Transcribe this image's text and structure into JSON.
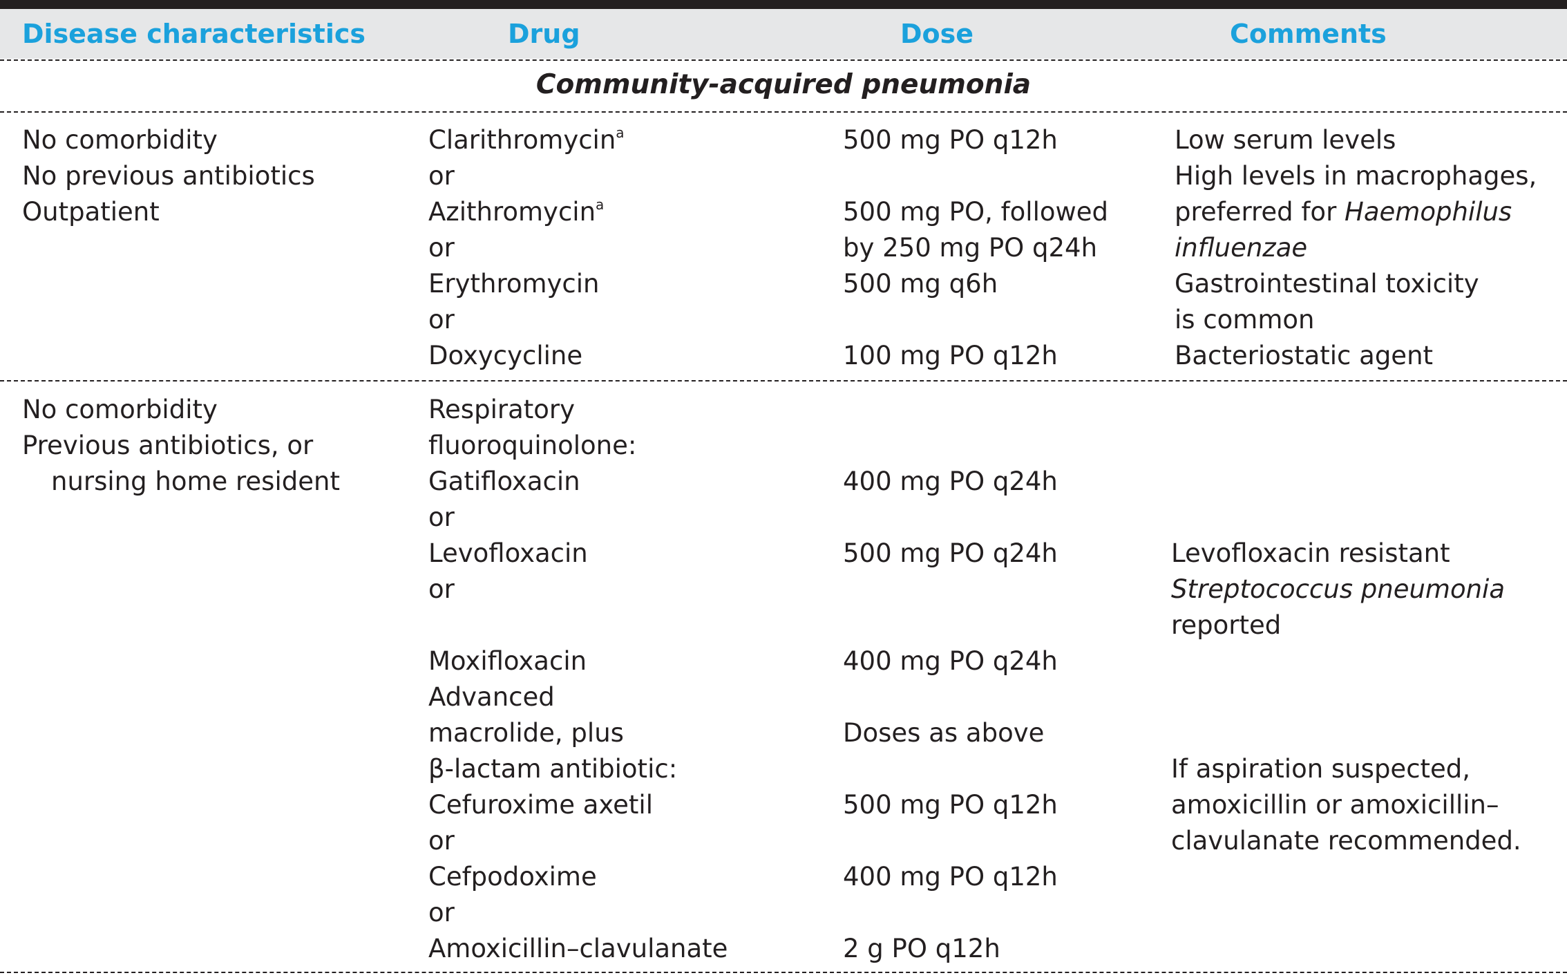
{
  "header": {
    "col_disease": "Disease characteristics",
    "col_drug": "Drug",
    "col_dose": "Dose",
    "col_comments": "Comments"
  },
  "section_title": "Community-acquired pneumonia",
  "row1": {
    "disease": [
      "No comorbidity",
      "No previous antibiotics",
      "Outpatient"
    ],
    "drug": {
      "clarithromycin": "Clarithromycin",
      "sup_a": "a",
      "or1": "or",
      "azithromycin": "Azithromycin",
      "sup_b": "a",
      "or2": "or",
      "erythromycin": "Erythromycin",
      "or3": "or",
      "doxycycline": "Doxycycline"
    },
    "dose": {
      "clarithromycin": "500 mg PO q12h",
      "azithromycin_1": "500 mg PO, followed",
      "azithromycin_2": "by 250 mg PO q24h",
      "erythromycin": "500 mg q6h",
      "doxycycline": "100 mg PO q12h"
    },
    "comments": {
      "l1": "Low serum levels",
      "l2": "High levels in macrophages,",
      "l3_a": "preferred for ",
      "l3_b": "Haemophilus",
      "l4": "influenzae",
      "l5": "Gastrointestinal toxicity",
      "l6": "is common",
      "l7": "Bacteriostatic agent"
    }
  },
  "row2": {
    "disease": [
      "No comorbidity",
      "Previous antibiotics, or",
      "nursing home resident"
    ],
    "drug": [
      "Respiratory",
      "fluoroquinolone:",
      "Gatifloxacin",
      "or",
      "Levofloxacin",
      "or",
      "",
      "Moxifloxacin",
      "Advanced",
      "macrolide, plus",
      "β-lactam antibiotic:",
      "Cefuroxime axetil",
      "or",
      "Cefpodoxime",
      "or",
      "Amoxicillin–clavulanate"
    ],
    "dose": {
      "gatifloxacin": "400 mg PO q24h",
      "levofloxacin": "500 mg PO q24h",
      "moxifloxacin": "400 mg PO q24h",
      "macrolide": "Doses as above",
      "cefuroxime": "500 mg PO q12h",
      "cefpodoxime": "400 mg PO q12h",
      "amoxicillin": "2 g PO q12h"
    },
    "comments": {
      "l1": "Levofloxacin resistant",
      "l2": "Streptococcus pneumonia",
      "l3": "reported",
      "l4": "If aspiration suspected,",
      "l5": "amoxicillin or amoxicillin–",
      "l6": "clavulanate recommended."
    }
  }
}
